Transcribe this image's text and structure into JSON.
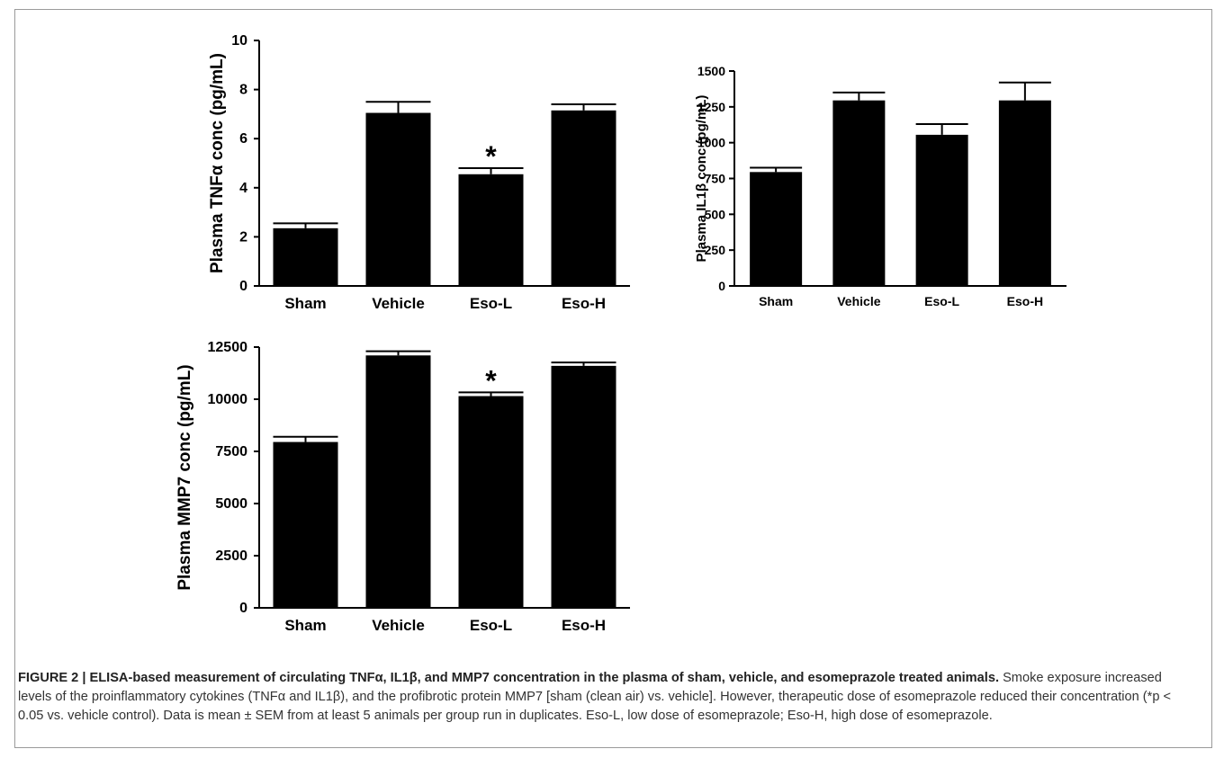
{
  "chart_data": [
    {
      "type": "bar",
      "ylabel": "Plasma TNFα conc (pg/mL)",
      "categories": [
        "Sham",
        "Vehicle",
        "Eso-L",
        "Eso-H"
      ],
      "values": [
        2.35,
        7.05,
        4.55,
        7.15
      ],
      "errors": [
        0.2,
        0.45,
        0.25,
        0.25
      ],
      "significant": [
        false,
        false,
        true,
        false
      ],
      "significance_marker": "*",
      "ylim": [
        0,
        10
      ],
      "yticks": [
        0,
        2,
        4,
        6,
        8,
        10
      ],
      "ytick_labels": [
        "0",
        "2",
        "4",
        "6",
        "8",
        "10"
      ],
      "bar_color": "#000000"
    },
    {
      "type": "bar",
      "ylabel": "Plasma IL1β conc (pg/mL)",
      "categories": [
        "Sham",
        "Vehicle",
        "Eso-L",
        "Eso-H"
      ],
      "values": [
        795,
        1295,
        1055,
        1295
      ],
      "errors": [
        30,
        55,
        75,
        125
      ],
      "significant": [
        false,
        false,
        false,
        false
      ],
      "significance_marker": "*",
      "ylim": [
        0,
        1500
      ],
      "yticks": [
        0,
        250,
        500,
        750,
        1000,
        1250,
        1500
      ],
      "ytick_labels": [
        "0",
        "250",
        "500",
        "750",
        "1000",
        "1250",
        "1500"
      ],
      "bar_color": "#000000"
    },
    {
      "type": "bar",
      "ylabel": "Plasma MMP7 conc (pg/mL)",
      "categories": [
        "Sham",
        "Vehicle",
        "Eso-L",
        "Eso-H"
      ],
      "values": [
        7950,
        12100,
        10150,
        11600
      ],
      "errors": [
        250,
        200,
        180,
        160
      ],
      "significant": [
        false,
        false,
        true,
        false
      ],
      "significance_marker": "*",
      "ylim": [
        0,
        12500
      ],
      "yticks": [
        0,
        2500,
        5000,
        7500,
        10000,
        12500
      ],
      "ytick_labels": [
        "0",
        "2500",
        "5000",
        "7500",
        "10000",
        "12500"
      ],
      "bar_color": "#000000"
    }
  ],
  "caption": {
    "heading": "FIGURE 2 | ELISA-based measurement of circulating TNFα, IL1β, and MMP7 concentration in the plasma of sham, vehicle, and esomeprazole treated animals.",
    "body": "Smoke exposure increased levels of the proinflammatory cytokines (TNFα and IL1β), and the profibrotic protein MMP7 [sham (clean air) vs. vehicle]. However, therapeutic dose of esomeprazole reduced their concentration (*p < 0.05 vs. vehicle control). Data is mean ± SEM from at least 5 animals per group run in duplicates. Eso-L, low dose of esomeprazole; Eso-H, high dose of esomeprazole."
  }
}
